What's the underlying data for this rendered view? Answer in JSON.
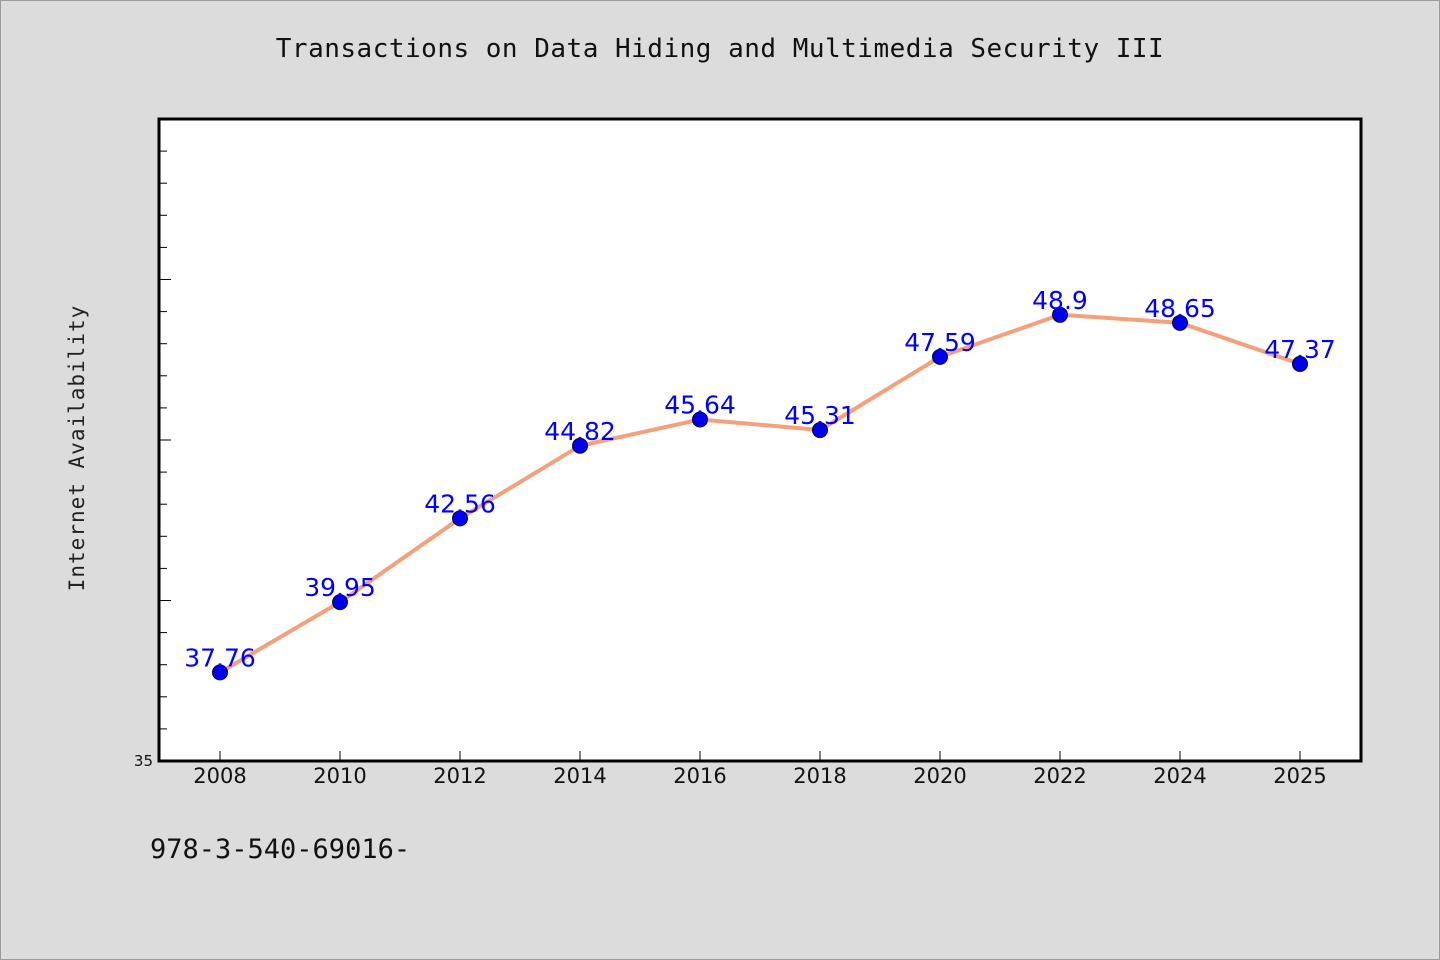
{
  "chart_data": {
    "type": "line",
    "title": "Transactions on Data Hiding and Multimedia Security III",
    "xlabel": "",
    "ylabel": "Internet Availability",
    "x": [
      "2008",
      "2010",
      "2012",
      "2014",
      "2016",
      "2018",
      "2020",
      "2022",
      "2024",
      "2025"
    ],
    "series": [
      {
        "values": [
          37.76,
          39.95,
          42.56,
          44.82,
          45.64,
          45.31,
          47.59,
          48.9,
          48.65,
          47.37
        ],
        "labels": [
          "37.76",
          "39.95",
          "42.56",
          "44.82",
          "45.64",
          "45.31",
          "47.59",
          "48.9",
          "48.65",
          "47.37"
        ],
        "line_color": "#f4a07c",
        "marker_color": "#0000ee",
        "label_color": "#0000ff"
      }
    ],
    "ylim": [
      35,
      55
    ],
    "y_tick_labels": [
      "35"
    ],
    "grid": false,
    "legend": "none"
  },
  "footer_note": "978-3-540-69016-"
}
